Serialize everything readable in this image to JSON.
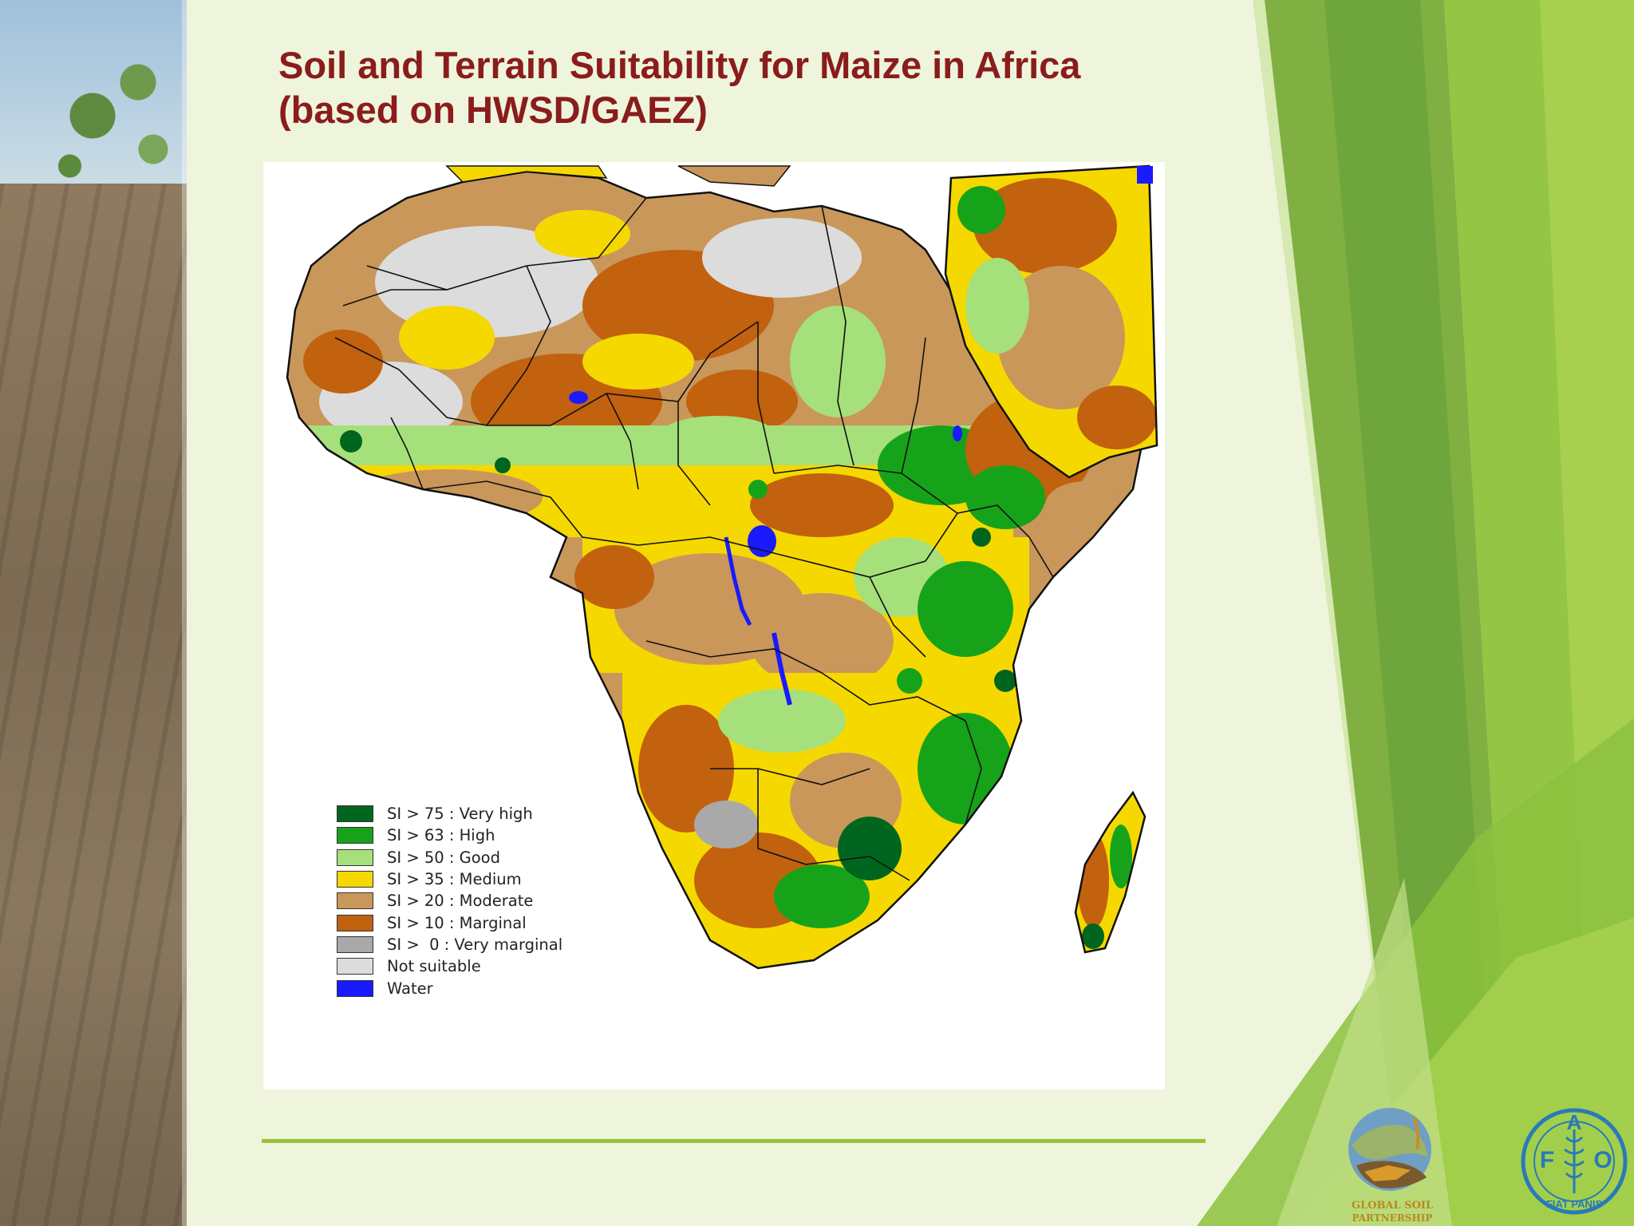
{
  "slide": {
    "title_line1": "Soil and Terrain Suitability for Maize in Africa",
    "title_line2": "(based on HWSD/GAEZ)"
  },
  "legend": {
    "items": [
      {
        "label": "SI > 75 : Very high",
        "color": "#00661f"
      },
      {
        "label": "SI > 63 : High",
        "color": "#16a31a"
      },
      {
        "label": "SI > 50 : Good",
        "color": "#a6e07a"
      },
      {
        "label": "SI > 35 : Medium",
        "color": "#f5d800"
      },
      {
        "label": "SI > 20 : Moderate",
        "color": "#c9975a"
      },
      {
        "label": "SI > 10 : Marginal",
        "color": "#c2610e"
      },
      {
        "label": "SI >  0 : Very marginal",
        "color": "#a9a9a9"
      },
      {
        "label": "Not suitable",
        "color": "#dcdcdc"
      },
      {
        "label": "Water",
        "color": "#1a1aff"
      }
    ]
  },
  "logos": {
    "gsp_text_line1": "GLOBAL SOIL",
    "gsp_text_line2": "PARTNERSHIP",
    "fao_letters": [
      "F",
      "A",
      "O"
    ],
    "fao_motto": "FIAT PANIS"
  },
  "colors": {
    "title": "#8b1c1c",
    "accent_rule": "#9bc23c",
    "background": "#eef5dc"
  }
}
